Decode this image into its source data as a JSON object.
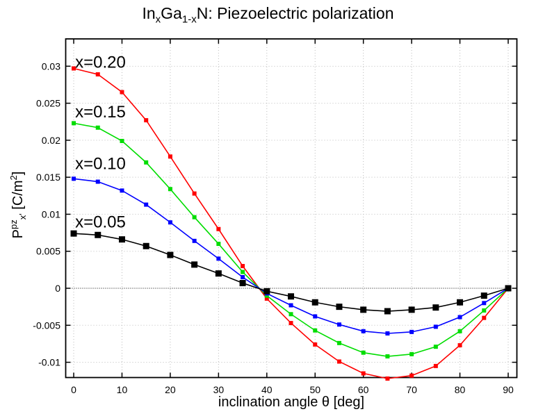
{
  "title": {
    "el1": "In",
    "sub1": "x",
    "el2": "Ga",
    "sub2": "1-x",
    "rest": "N: Piezoelectric polarization"
  },
  "axis": {
    "xlabel": "inclination angle θ [deg]",
    "ylabel": {
      "base": "P",
      "sup": "pz",
      "sub": "x'",
      "unit_pre": " [C/m",
      "unit_sup": "2",
      "unit_post": "]"
    }
  },
  "chart_data": {
    "type": "line",
    "title": "InxGa1-xN: Piezoelectric polarization",
    "xlabel": "inclination angle θ [deg]",
    "ylabel": "P^pz_x' [C/m^2]",
    "grid": true,
    "legend_position": "inline-labels-left",
    "x": [
      0,
      5,
      10,
      15,
      20,
      25,
      30,
      35,
      40,
      45,
      50,
      55,
      60,
      65,
      70,
      75,
      80,
      85,
      90
    ],
    "series": [
      {
        "name": "x=0.20",
        "color": "#ff0000",
        "marker": "square",
        "marker_size": 6,
        "values": [
          0.0297,
          0.0289,
          0.0265,
          0.0227,
          0.0178,
          0.0128,
          0.008,
          0.003,
          -0.0014,
          -0.0047,
          -0.0076,
          -0.0099,
          -0.0115,
          -0.0122,
          -0.0118,
          -0.0105,
          -0.0077,
          -0.004,
          0.0
        ]
      },
      {
        "name": "x=0.15",
        "color": "#00dd00",
        "marker": "square",
        "marker_size": 6,
        "values": [
          0.0223,
          0.0217,
          0.0199,
          0.017,
          0.0134,
          0.0096,
          0.006,
          0.0022,
          -0.001,
          -0.0035,
          -0.0057,
          -0.0074,
          -0.0087,
          -0.0092,
          -0.0089,
          -0.0079,
          -0.0058,
          -0.003,
          0.0
        ]
      },
      {
        "name": "x=0.10",
        "color": "#0000ff",
        "marker": "square",
        "marker_size": 6,
        "values": [
          0.0148,
          0.0144,
          0.0132,
          0.0113,
          0.0089,
          0.0064,
          0.004,
          0.0015,
          -0.0007,
          -0.0023,
          -0.0038,
          -0.0049,
          -0.0058,
          -0.0061,
          -0.0059,
          -0.0052,
          -0.0039,
          -0.002,
          0.0
        ]
      },
      {
        "name": "x=0.05",
        "color": "#000000",
        "marker": "square",
        "marker_size": 9,
        "values": [
          0.0074,
          0.0072,
          0.0066,
          0.0057,
          0.0045,
          0.0032,
          0.002,
          0.0007,
          -0.0004,
          -0.0011,
          -0.0019,
          -0.0025,
          -0.0029,
          -0.0031,
          -0.0029,
          -0.0026,
          -0.0019,
          -0.001,
          0.0
        ]
      }
    ],
    "curve_labels": [
      {
        "text": "x=0.20",
        "color": "#ff0000",
        "x": 0.3,
        "y": 0.0298
      },
      {
        "text": "x=0.15",
        "color": "#00dd00",
        "x": 0.3,
        "y": 0.0231
      },
      {
        "text": "x=0.10",
        "color": "#0000ff",
        "x": 0.3,
        "y": 0.0161
      },
      {
        "text": "x=0.05",
        "color": "#000000",
        "x": 0.3,
        "y": 0.0082
      }
    ],
    "xlim": [
      -1.66,
      91.8
    ],
    "ylim": [
      -0.01206,
      0.03369
    ],
    "xticks": [
      0,
      10,
      20,
      30,
      40,
      50,
      60,
      70,
      80,
      90
    ],
    "xtick_labels": [
      "0",
      "10",
      "20",
      "30",
      "40",
      "50",
      "60",
      "70",
      "80",
      "90"
    ],
    "yticks": [
      {
        "v": 0.03,
        "label": "0.03"
      },
      {
        "v": 0.025,
        "label": "0.025"
      },
      {
        "v": 0.02,
        "label": "0.02"
      },
      {
        "v": 0.015,
        "label": "0.015"
      },
      {
        "v": 0.01,
        "label": "0.01"
      },
      {
        "v": 0.005,
        "label": "0.005"
      },
      {
        "v": 0,
        "label": "0"
      },
      {
        "v": -0.005,
        "label": "-0.005"
      },
      {
        "v": -0.01,
        "label": "-0.01"
      }
    ],
    "colors": {
      "frame": "#000000",
      "grid": "#bbbbbb",
      "zero_line": "#000000",
      "background": "#ffffff"
    }
  }
}
